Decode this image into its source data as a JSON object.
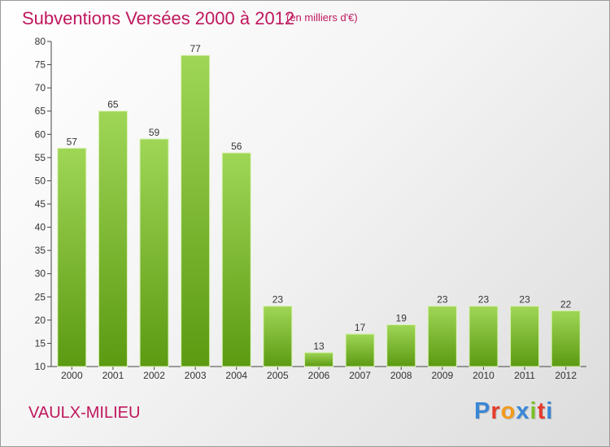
{
  "header": {
    "title": "Subventions Versées 2000 à 2012",
    "unit": "(en milliers d'€)"
  },
  "footer": {
    "commune": "VAULX-MILIEU",
    "logo_letters": [
      "P",
      "r",
      "o",
      "x",
      "i",
      "t",
      "i"
    ]
  },
  "colors": {
    "bar_light": "#9fd656",
    "bar_dark": "#5c9a12",
    "title": "#c0175d",
    "logo": [
      "#3a87d6",
      "#e53b2c",
      "#f29a1d",
      "#3a87d6",
      "#7cbf2a",
      "#e53b2c",
      "#3a87d6"
    ]
  },
  "chart_data": {
    "type": "bar",
    "title": "Subventions Versées 2000 à 2012",
    "ylabel": "",
    "xlabel": "",
    "categories": [
      "2000",
      "2001",
      "2002",
      "2003",
      "2004",
      "2005",
      "2006",
      "2007",
      "2008",
      "2009",
      "2010",
      "2011",
      "2012"
    ],
    "values": [
      57,
      65,
      59,
      77,
      56,
      23,
      13,
      17,
      19,
      23,
      23,
      23,
      22
    ],
    "ylim": [
      10,
      80
    ],
    "yticks": [
      10,
      15,
      20,
      25,
      30,
      35,
      40,
      45,
      50,
      55,
      60,
      65,
      70,
      75,
      80
    ],
    "grid": false,
    "data_labels": true
  }
}
